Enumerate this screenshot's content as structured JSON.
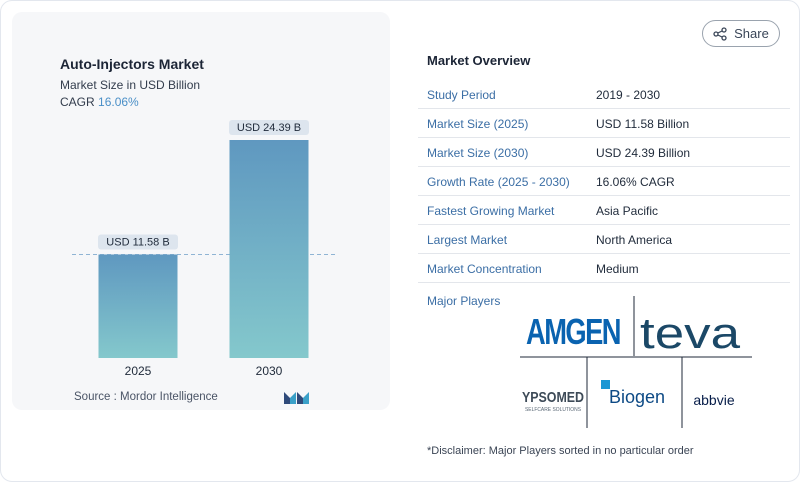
{
  "chart": {
    "title": "Auto-Injectors Market",
    "subtitle": "Market Size in USD Billion",
    "cagr_label": "CAGR",
    "cagr_value": "16.06%",
    "source": "Source :  Mordor Intelligence"
  },
  "chart_data": {
    "type": "bar",
    "categories": [
      "2025",
      "2030"
    ],
    "values": [
      11.58,
      24.39
    ],
    "data_labels": [
      "USD 11.58 B",
      "USD 24.39 B"
    ],
    "title": "Auto-Injectors Market",
    "subtitle": "Market Size in USD Billion",
    "xlabel": "",
    "ylabel": "",
    "ylim": [
      0,
      25
    ],
    "grid": false,
    "reference_line": "dashed line at 2025 value",
    "colors": {
      "bar_top": "#5f98c0",
      "bar_bottom": "#84c8cc",
      "label_bg": "#dde5ee",
      "dashed_line": "#8fb4d4"
    }
  },
  "share": {
    "label": "Share",
    "icon": "share-icon"
  },
  "overview": {
    "title": "Market Overview",
    "rows": [
      {
        "key": "Study Period",
        "value": "2019 - 2030"
      },
      {
        "key": "Market Size (2025)",
        "value": "USD 11.58 Billion"
      },
      {
        "key": "Market Size (2030)",
        "value": "USD 24.39 Billion"
      },
      {
        "key": "Growth Rate (2025 - 2030)",
        "value": "16.06% CAGR"
      },
      {
        "key": "Fastest Growing Market",
        "value": "Asia Pacific"
      },
      {
        "key": "Largest Market",
        "value": "North America"
      },
      {
        "key": "Market Concentration",
        "value": "Medium"
      }
    ],
    "players_label": "Major Players",
    "players": [
      "AMGEN",
      "teva",
      "YPSOMED",
      "SELFCARE SOLUTIONS",
      "Biogen",
      "abbvie"
    ],
    "disclaimer": "*Disclaimer: Major Players sorted in no particular order"
  }
}
